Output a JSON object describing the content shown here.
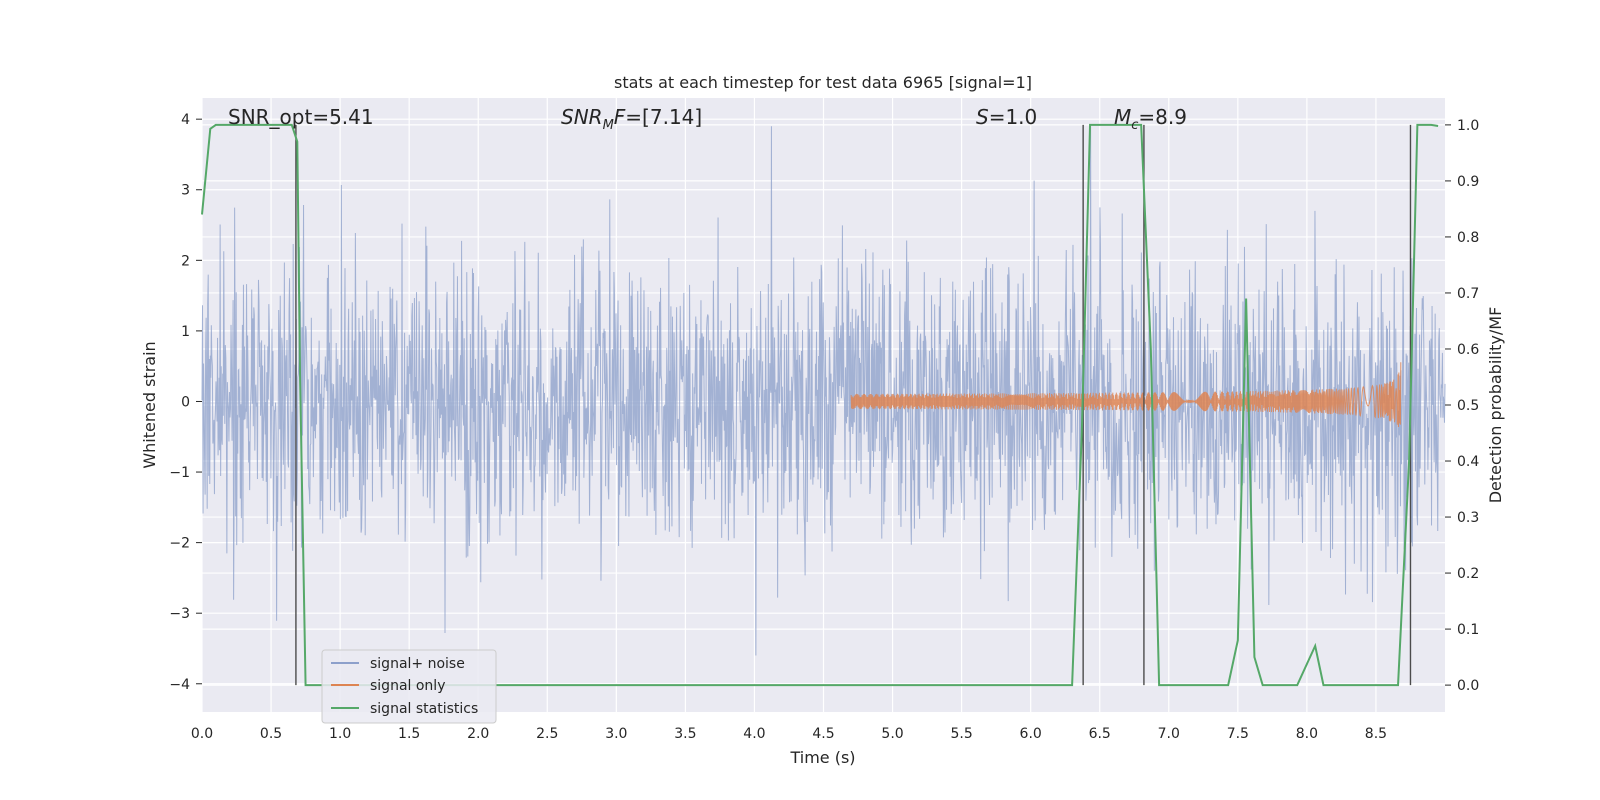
{
  "chart_data": {
    "type": "line",
    "title": "stats at each timestep for test data 6965 [signal=1]",
    "xlabel": "Time (s)",
    "ylabel": "Whitened strain",
    "ylabel_right": "Detection probability/MF",
    "xlim": [
      0.0,
      9.0
    ],
    "ylim": [
      -4.4,
      4.3
    ],
    "ylim_right": [
      -0.048,
      1.048
    ],
    "x_ticks": [
      "0.0",
      "0.5",
      "1.0",
      "1.5",
      "2.0",
      "2.5",
      "3.0",
      "3.5",
      "4.0",
      "4.5",
      "5.0",
      "5.5",
      "6.0",
      "6.5",
      "7.0",
      "7.5",
      "8.0",
      "8.5"
    ],
    "y_ticks": [
      "4",
      "3",
      "2",
      "1",
      "0",
      "−1",
      "−2",
      "−3",
      "−4"
    ],
    "y_ticks_right": [
      "1.0",
      "0.9",
      "0.8",
      "0.7",
      "0.6",
      "0.5",
      "0.4",
      "0.3",
      "0.2",
      "0.1",
      "0.0"
    ],
    "grid": true,
    "legend_position": "lower-left",
    "annotations": {
      "snr_opt": "SNR_opt=5.41",
      "snr_mf": "=[7.14]",
      "snr_mf_sym": "SNR",
      "snr_mf_sub": "M",
      "snr_mf_tail": "F",
      "s_val": "=1.0",
      "s_sym": "S",
      "mc_val": "=8.9",
      "mc_sym": "M",
      "mc_sub": "c"
    },
    "series": [
      {
        "name": "signal+ noise",
        "color": "#8da0cb",
        "kind": "noise",
        "amplitude_std": 1.0,
        "peak_range": [
          -3.6,
          3.9
        ]
      },
      {
        "name": "signal only",
        "color": "#dd8452",
        "kind": "chirp",
        "x_start": 4.7,
        "x_end": 8.68,
        "peak_amp": 0.6
      },
      {
        "name": "signal statistics",
        "color": "#55a868",
        "x": [
          0.0,
          0.06,
          0.1,
          0.15,
          0.2,
          0.3,
          0.4,
          0.5,
          0.6,
          0.65,
          0.69,
          0.71,
          0.75,
          0.8,
          0.9,
          1.0,
          2.0,
          3.0,
          4.0,
          5.0,
          6.0,
          6.3,
          6.37,
          6.43,
          6.5,
          6.6,
          6.7,
          6.8,
          6.87,
          6.93,
          7.0,
          7.2,
          7.43,
          7.5,
          7.56,
          7.62,
          7.68,
          7.8,
          7.93,
          8.06,
          8.12,
          8.2,
          8.4,
          8.66,
          8.74,
          8.8,
          8.85,
          8.9,
          8.95
        ],
        "y": [
          0.84,
          0.993,
          1.0,
          1.0,
          1.0,
          1.0,
          1.0,
          1.0,
          1.0,
          1.0,
          0.97,
          0.55,
          0.0,
          0.0,
          0.0,
          0.0,
          0.0,
          0.0,
          0.0,
          0.0,
          0.0,
          0.0,
          0.45,
          1.0,
          1.0,
          1.0,
          1.0,
          1.0,
          0.6,
          0.0,
          0.0,
          0.0,
          0.0,
          0.08,
          0.69,
          0.05,
          0.0,
          0.0,
          0.0,
          0.07,
          0.0,
          0.0,
          0.0,
          0.0,
          0.4,
          1.0,
          1.0,
          1.0,
          0.998
        ]
      }
    ],
    "vlines_x": [
      0.68,
      6.38,
      6.82,
      8.75
    ]
  },
  "legend": {
    "items": [
      "signal+ noise",
      "signal only",
      "signal statistics"
    ]
  }
}
